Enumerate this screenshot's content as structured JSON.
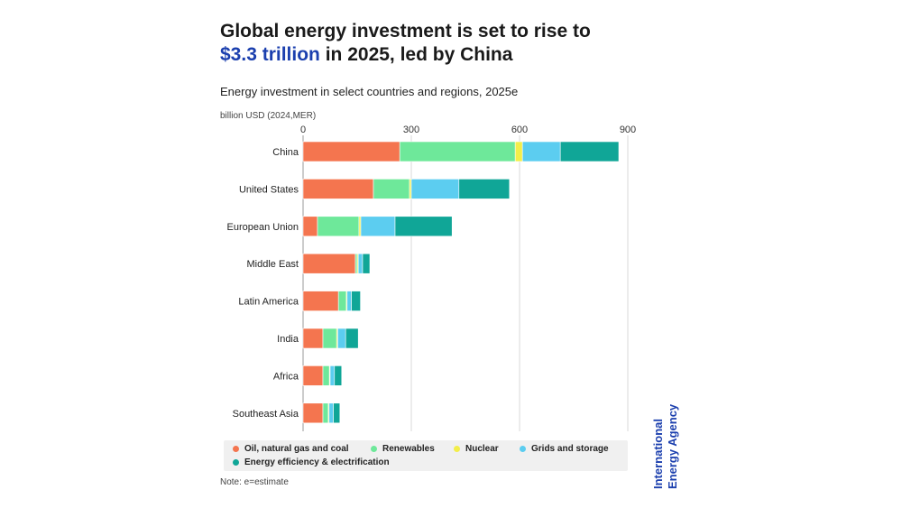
{
  "header": {
    "title_line1": "Global energy investment is set to rise to",
    "title_highlight": "$3.3 trillion",
    "title_line2_rest": " in 2025, led by China",
    "subtitle": "Energy investment in select countries and regions, 2025e",
    "unit": "billion USD (2024,MER)"
  },
  "chart_data": {
    "type": "bar",
    "orientation": "horizontal",
    "stacked": true,
    "title": "Energy investment in select countries and regions, 2025e",
    "xlabel": "billion USD (2024,MER)",
    "ylabel": "",
    "xlim": [
      0,
      900
    ],
    "xticks": [
      "0",
      "300",
      "600",
      "900"
    ],
    "grid": true,
    "categories": [
      "China",
      "United States",
      "European Union",
      "Middle East",
      "Latin America",
      "India",
      "Africa",
      "Southeast Asia"
    ],
    "series": [
      {
        "name": "Oil, natural gas and coal",
        "color": "#f4754f",
        "values": [
          268,
          195,
          40,
          145,
          98,
          55,
          55,
          55
        ]
      },
      {
        "name": "Renewables",
        "color": "#6ee89a",
        "values": [
          320,
          100,
          115,
          5,
          22,
          38,
          18,
          15
        ]
      },
      {
        "name": "Nuclear",
        "color": "#f3ee4a",
        "values": [
          20,
          5,
          5,
          3,
          2,
          3,
          2,
          2
        ]
      },
      {
        "name": "Grids and storage",
        "color": "#5ccdf0",
        "values": [
          105,
          132,
          95,
          12,
          12,
          22,
          12,
          12
        ]
      },
      {
        "name": "Energy efficiency & electrification",
        "color": "#10a697",
        "values": [
          162,
          140,
          158,
          20,
          25,
          35,
          20,
          18
        ]
      }
    ],
    "legend": "bottom"
  },
  "footer": {
    "note": "Note: e=estimate",
    "brand_line1": "International",
    "brand_line2": "Energy Agency"
  }
}
